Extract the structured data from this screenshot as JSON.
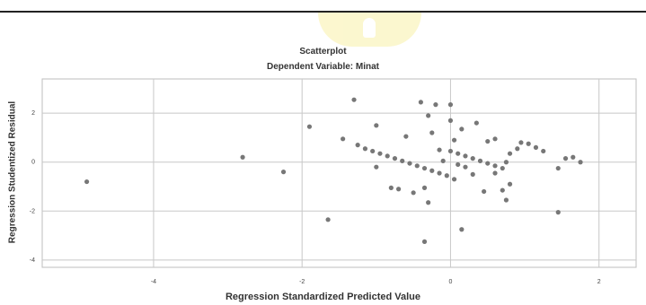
{
  "chart_data": {
    "type": "scatter",
    "title": "Scatterplot",
    "subtitle": "Dependent Variable: Minat",
    "xlabel": "Regression Standardized Predicted Value",
    "ylabel": "Regression Studentized Residual",
    "xlim": [
      -5.5,
      2.5
    ],
    "ylim": [
      -4.3,
      3.4
    ],
    "x_ticks": [
      -4,
      -2,
      0,
      2
    ],
    "y_ticks": [
      -4,
      -2,
      0,
      2
    ],
    "grid": true,
    "point_color": "#777777",
    "points": [
      [
        -4.9,
        -0.8
      ],
      [
        -2.8,
        0.2
      ],
      [
        -2.25,
        -0.4
      ],
      [
        -1.9,
        1.45
      ],
      [
        -1.65,
        -2.35
      ],
      [
        -1.3,
        2.55
      ],
      [
        -1.45,
        0.95
      ],
      [
        -1.25,
        0.7
      ],
      [
        -1.15,
        0.55
      ],
      [
        -1.05,
        0.45
      ],
      [
        -0.95,
        0.35
      ],
      [
        -0.85,
        0.25
      ],
      [
        -0.75,
        0.15
      ],
      [
        -0.65,
        0.05
      ],
      [
        -0.55,
        -0.05
      ],
      [
        -0.45,
        -0.15
      ],
      [
        -0.35,
        -0.25
      ],
      [
        -0.25,
        -0.35
      ],
      [
        -0.15,
        -0.45
      ],
      [
        -0.05,
        -0.55
      ],
      [
        0.05,
        -0.7
      ],
      [
        -1.0,
        1.5
      ],
      [
        -0.6,
        1.05
      ],
      [
        -1.0,
        -0.2
      ],
      [
        -0.8,
        -1.05
      ],
      [
        -0.7,
        -1.1
      ],
      [
        -0.5,
        -1.25
      ],
      [
        -0.35,
        -1.05
      ],
      [
        -0.4,
        2.45
      ],
      [
        -0.2,
        2.35
      ],
      [
        0.0,
        2.35
      ],
      [
        -0.3,
        1.9
      ],
      [
        0.0,
        1.7
      ],
      [
        0.15,
        1.35
      ],
      [
        -0.25,
        1.2
      ],
      [
        0.05,
        0.9
      ],
      [
        0.35,
        1.6
      ],
      [
        0.6,
        0.95
      ],
      [
        0.5,
        0.85
      ],
      [
        -0.15,
        0.5
      ],
      [
        0.0,
        0.45
      ],
      [
        0.1,
        0.35
      ],
      [
        0.2,
        0.25
      ],
      [
        0.3,
        0.15
      ],
      [
        0.4,
        0.05
      ],
      [
        0.5,
        -0.05
      ],
      [
        0.6,
        -0.15
      ],
      [
        0.7,
        -0.25
      ],
      [
        -0.1,
        0.05
      ],
      [
        0.1,
        -0.1
      ],
      [
        0.2,
        -0.2
      ],
      [
        0.3,
        -0.5
      ],
      [
        0.45,
        -1.2
      ],
      [
        0.7,
        -1.15
      ],
      [
        0.75,
        -1.55
      ],
      [
        0.8,
        -0.9
      ],
      [
        0.9,
        0.55
      ],
      [
        0.8,
        0.35
      ],
      [
        0.95,
        0.8
      ],
      [
        1.05,
        0.75
      ],
      [
        1.15,
        0.6
      ],
      [
        1.25,
        0.45
      ],
      [
        1.45,
        -0.25
      ],
      [
        1.55,
        0.15
      ],
      [
        1.65,
        0.2
      ],
      [
        1.75,
        0.0
      ],
      [
        1.45,
        -2.05
      ],
      [
        -0.3,
        -1.65
      ],
      [
        -0.35,
        -3.25
      ],
      [
        0.15,
        -2.75
      ],
      [
        0.75,
        0.0
      ],
      [
        0.6,
        -0.45
      ]
    ]
  }
}
